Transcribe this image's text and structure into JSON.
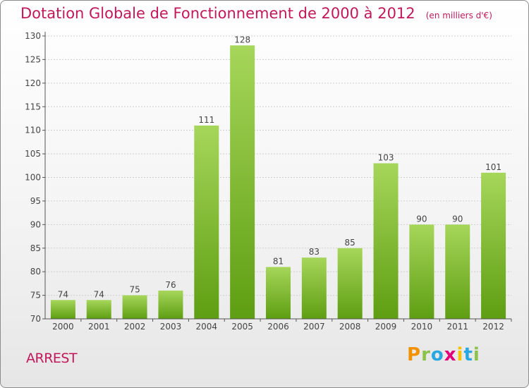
{
  "title": "Dotation Globale de Fonctionnement de 2000 à 2012",
  "subtitle": "(en milliers d'€)",
  "commune": "ARREST",
  "logo_text": "Proxiti",
  "colors": {
    "title": "#c2185b",
    "bar_light": "#a6d65a",
    "bar_dark": "#5e9e12",
    "axis": "#555555"
  },
  "chart_data": {
    "type": "bar",
    "categories": [
      "2000",
      "2001",
      "2002",
      "2003",
      "2004",
      "2005",
      "2006",
      "2007",
      "2008",
      "2009",
      "2010",
      "2011",
      "2012"
    ],
    "values": [
      74,
      74,
      75,
      76,
      111,
      128,
      81,
      83,
      85,
      103,
      90,
      90,
      101
    ],
    "title": "Dotation Globale de Fonctionnement de 2000 à 2012",
    "subtitle": "(en milliers d'€)",
    "xlabel": "",
    "ylabel": "",
    "ylim": [
      70,
      130
    ],
    "yticks": [
      70,
      75,
      80,
      85,
      90,
      95,
      100,
      105,
      110,
      115,
      120,
      125,
      130
    ],
    "grid": true,
    "legend": "none"
  }
}
